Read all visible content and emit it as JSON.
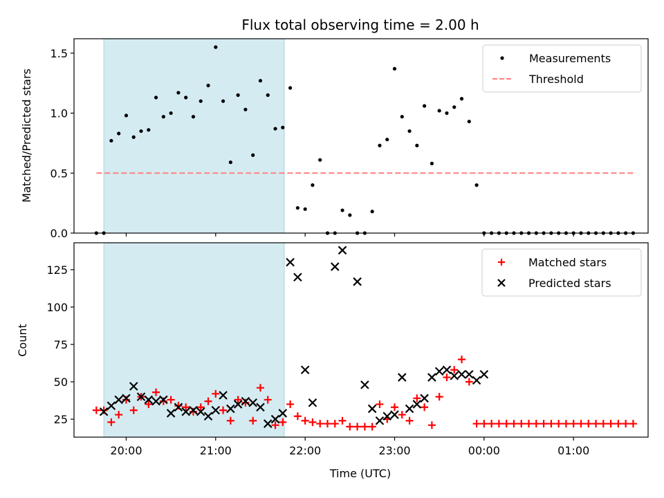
{
  "chart_data": {
    "title": "Flux total observing time = 2.00 h",
    "xlabel": "Time (UTC)",
    "x_unit": "UTC time",
    "xlim": [
      "19:25",
      "01:50"
    ],
    "x_ticks": [
      "20:00",
      "21:00",
      "22:00",
      "23:00",
      "00:00",
      "01:00"
    ],
    "highlight_span": {
      "start": "19:45",
      "end": "21:46",
      "color": "#d4ebf1"
    },
    "panels": [
      {
        "type": "scatter",
        "ylabel": "Matched/Predicted stars",
        "ylim": [
          0,
          1.62
        ],
        "y_ticks": [
          "0.0",
          "0.5",
          "1.0",
          "1.5"
        ],
        "legend_position": "upper right",
        "series": [
          {
            "name": "Measurements",
            "marker": "dot",
            "color": "#000000",
            "x": [
              "19:40",
              "19:45",
              "19:50",
              "19:55",
              "20:00",
              "20:05",
              "20:10",
              "20:15",
              "20:20",
              "20:25",
              "20:30",
              "20:35",
              "20:40",
              "20:45",
              "20:50",
              "20:55",
              "21:00",
              "21:05",
              "21:10",
              "21:15",
              "21:20",
              "21:25",
              "21:30",
              "21:35",
              "21:40",
              "21:45",
              "21:50",
              "21:55",
              "22:00",
              "22:05",
              "22:10",
              "22:15",
              "22:20",
              "22:25",
              "22:30",
              "22:35",
              "22:40",
              "22:45",
              "22:50",
              "22:55",
              "23:00",
              "23:05",
              "23:10",
              "23:15",
              "23:20",
              "23:25",
              "23:30",
              "23:35",
              "23:40",
              "23:45",
              "23:50",
              "23:55",
              "00:00",
              "00:05",
              "00:10",
              "00:15",
              "00:20",
              "00:25",
              "00:30",
              "00:35",
              "00:40",
              "00:45",
              "00:50",
              "00:55",
              "01:00",
              "01:05",
              "01:10",
              "01:15",
              "01:20",
              "01:25",
              "01:30",
              "01:35",
              "01:40"
            ],
            "y": [
              0.0,
              0.0,
              0.77,
              0.83,
              0.98,
              0.8,
              0.85,
              0.86,
              1.13,
              0.97,
              1.0,
              1.17,
              1.13,
              0.97,
              1.1,
              1.23,
              1.55,
              1.1,
              0.59,
              1.15,
              1.03,
              0.65,
              1.27,
              1.15,
              0.87,
              0.88,
              1.21,
              0.21,
              0.2,
              0.4,
              0.61,
              0.0,
              0.0,
              0.19,
              0.15,
              0.0,
              0.0,
              0.18,
              0.73,
              0.78,
              1.37,
              0.97,
              0.85,
              0.73,
              1.06,
              0.58,
              1.02,
              1.0,
              1.05,
              1.12,
              0.93,
              0.4,
              0.0,
              0.0,
              0.0,
              0.0,
              0.0,
              0.0,
              0.0,
              0.0,
              0.0,
              0.0,
              0.0,
              0.0,
              0.0,
              0.0,
              0.0,
              0.0,
              0.0,
              0.0,
              0.0,
              0.0,
              0.0
            ]
          },
          {
            "name": "Threshold",
            "marker": "dashed-line",
            "color": "#ff7f7f",
            "x": [
              "19:40",
              "01:40"
            ],
            "y": [
              0.5,
              0.5
            ]
          }
        ]
      },
      {
        "type": "scatter",
        "ylabel": "Count",
        "ylim": [
          13,
          143
        ],
        "y_ticks": [
          "25",
          "50",
          "75",
          "100",
          "125"
        ],
        "legend_position": "upper right",
        "series": [
          {
            "name": "Matched stars",
            "marker": "plus",
            "color": "#ff0000",
            "x": [
              "19:40",
              "19:45",
              "19:50",
              "19:55",
              "20:00",
              "20:05",
              "20:10",
              "20:15",
              "20:20",
              "20:25",
              "20:30",
              "20:35",
              "20:40",
              "20:45",
              "20:50",
              "20:55",
              "21:00",
              "21:05",
              "21:10",
              "21:15",
              "21:20",
              "21:25",
              "21:30",
              "21:35",
              "21:40",
              "21:45",
              "21:50",
              "21:55",
              "22:00",
              "22:05",
              "22:10",
              "22:15",
              "22:20",
              "22:25",
              "22:30",
              "22:35",
              "22:40",
              "22:45",
              "22:50",
              "22:55",
              "23:00",
              "23:05",
              "23:10",
              "23:15",
              "23:20",
              "23:25",
              "23:30",
              "23:35",
              "23:40",
              "23:45",
              "23:50",
              "23:55",
              "00:00",
              "00:05",
              "00:10",
              "00:15",
              "00:20",
              "00:25",
              "00:30",
              "00:35",
              "00:40",
              "00:45",
              "00:50",
              "00:55",
              "01:00",
              "01:05",
              "01:10",
              "01:15",
              "01:20",
              "01:25",
              "01:30",
              "01:35",
              "01:40"
            ],
            "y": [
              31,
              31,
              23,
              28,
              38,
              31,
              40,
              35,
              43,
              37,
              38,
              34,
              33,
              30,
              33,
              37,
              42,
              31,
              24,
              38,
              36,
              24,
              46,
              38,
              21,
              23,
              35,
              27,
              24,
              23,
              22,
              22,
              22,
              24,
              20,
              20,
              20,
              20,
              35,
              25,
              33,
              28,
              24,
              39,
              33,
              21,
              40,
              53,
              58,
              65,
              50,
              22,
              22,
              22,
              22,
              22,
              22,
              22,
              22,
              22,
              22,
              22,
              22,
              22,
              22,
              22,
              22,
              22,
              22,
              22,
              22,
              22,
              22
            ]
          },
          {
            "name": "Predicted stars",
            "marker": "x",
            "color": "#000000",
            "x": [
              "19:45",
              "19:50",
              "19:55",
              "20:00",
              "20:05",
              "20:10",
              "20:15",
              "20:20",
              "20:25",
              "20:30",
              "20:35",
              "20:40",
              "20:45",
              "20:50",
              "20:55",
              "21:00",
              "21:05",
              "21:10",
              "21:15",
              "21:20",
              "21:25",
              "21:30",
              "21:35",
              "21:40",
              "21:45",
              "21:50",
              "21:55",
              "22:00",
              "22:05",
              "22:20",
              "22:25",
              "22:35",
              "22:40",
              "22:45",
              "22:50",
              "22:55",
              "23:00",
              "23:05",
              "23:10",
              "23:15",
              "23:20",
              "23:25",
              "23:30",
              "23:35",
              "23:40",
              "23:45",
              "23:50",
              "23:55",
              "00:00"
            ],
            "y": [
              30,
              34,
              38,
              39,
              47,
              40,
              38,
              37,
              38,
              29,
              33,
              30,
              31,
              30,
              27,
              31,
              41,
              32,
              35,
              37,
              36,
              33,
              22,
              25,
              29,
              130,
              120,
              58,
              36,
              127,
              138,
              117,
              48,
              32,
              24,
              27,
              28,
              53,
              32,
              35,
              39,
              53,
              57,
              58,
              54,
              55,
              55,
              51,
              55
            ]
          }
        ]
      }
    ]
  }
}
